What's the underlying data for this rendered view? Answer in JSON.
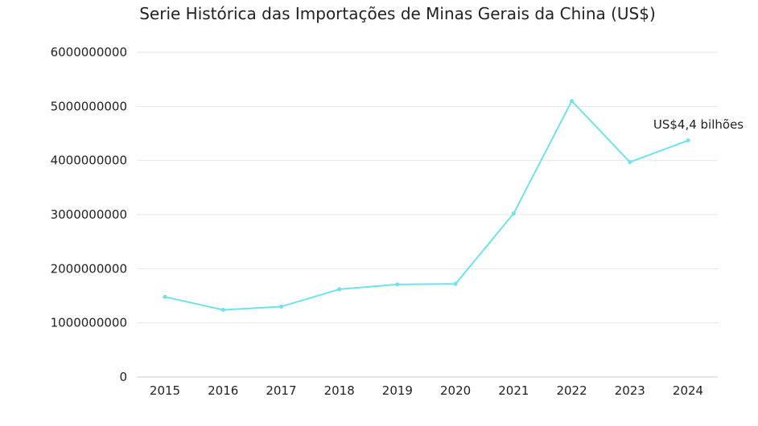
{
  "chart_data": {
    "type": "line",
    "title": "Serie Histórica das Importações de Minas Gerais da China (US$)",
    "xlabel": "",
    "ylabel": "",
    "ylim": [
      0,
      6000000000
    ],
    "yticks": [
      0,
      1000000000,
      2000000000,
      3000000000,
      4000000000,
      5000000000,
      6000000000
    ],
    "categories": [
      "2015",
      "2016",
      "2017",
      "2018",
      "2019",
      "2020",
      "2021",
      "2022",
      "2023",
      "2024"
    ],
    "series": [
      {
        "values": [
          1480000000,
          1240000000,
          1300000000,
          1620000000,
          1710000000,
          1720000000,
          3020000000,
          5100000000,
          3970000000,
          4370000000
        ],
        "color": "#6fe3e8"
      }
    ],
    "annotation": {
      "text": "US$4,4 bilhões",
      "category": "2024"
    },
    "grid": true,
    "legend": "none"
  }
}
